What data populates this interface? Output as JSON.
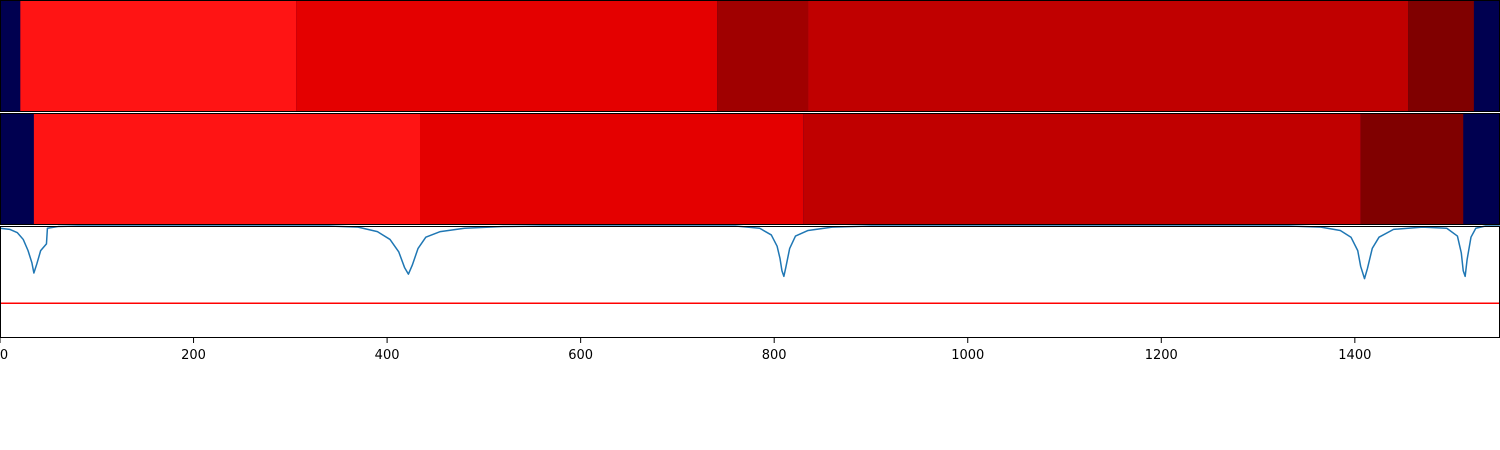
{
  "chart_data": {
    "type": "segmentation-strips-with-line",
    "xlim": [
      0,
      1550
    ],
    "xticks": [
      0,
      200,
      400,
      600,
      800,
      1000,
      1200,
      1400
    ],
    "xtick_labels": [
      "0",
      "200",
      "400",
      "600",
      "800",
      "1000",
      "1200",
      "1400"
    ],
    "background_color": "#000050",
    "strips": [
      {
        "segments": [
          {
            "start": 21,
            "end": 306,
            "color": "#ff1414"
          },
          {
            "start": 306,
            "end": 741,
            "color": "#e40000"
          },
          {
            "start": 741,
            "end": 835,
            "color": "#a00000"
          },
          {
            "start": 835,
            "end": 1455,
            "color": "#c00000"
          },
          {
            "start": 1455,
            "end": 1523,
            "color": "#800000"
          }
        ]
      },
      {
        "segments": [
          {
            "start": 35,
            "end": 434,
            "color": "#ff1414"
          },
          {
            "start": 434,
            "end": 830,
            "color": "#e40000"
          },
          {
            "start": 830,
            "end": 1406,
            "color": "#c00000"
          },
          {
            "start": 1406,
            "end": 1512,
            "color": "#800000"
          }
        ]
      }
    ],
    "line_panel": {
      "ylim": [
        0,
        1
      ],
      "threshold": 0.31,
      "threshold_color": "#ff0000",
      "line_color": "#1f77b4",
      "points": [
        [
          0,
          0.98
        ],
        [
          10,
          0.97
        ],
        [
          18,
          0.94
        ],
        [
          24,
          0.88
        ],
        [
          29,
          0.78
        ],
        [
          33,
          0.67
        ],
        [
          35,
          0.58
        ],
        [
          38,
          0.66
        ],
        [
          42,
          0.78
        ],
        [
          46,
          0.82
        ],
        [
          48,
          0.84
        ],
        [
          49,
          0.98
        ],
        [
          60,
          0.995
        ],
        [
          80,
          1.0
        ],
        [
          340,
          1.0
        ],
        [
          370,
          0.99
        ],
        [
          390,
          0.95
        ],
        [
          403,
          0.88
        ],
        [
          412,
          0.77
        ],
        [
          418,
          0.63
        ],
        [
          422,
          0.57
        ],
        [
          426,
          0.65
        ],
        [
          432,
          0.8
        ],
        [
          440,
          0.9
        ],
        [
          455,
          0.95
        ],
        [
          480,
          0.98
        ],
        [
          520,
          0.995
        ],
        [
          560,
          1.0
        ],
        [
          760,
          1.0
        ],
        [
          785,
          0.98
        ],
        [
          797,
          0.92
        ],
        [
          803,
          0.82
        ],
        [
          806,
          0.71
        ],
        [
          808,
          0.6
        ],
        [
          810,
          0.55
        ],
        [
          812,
          0.63
        ],
        [
          816,
          0.8
        ],
        [
          822,
          0.91
        ],
        [
          835,
          0.96
        ],
        [
          860,
          0.99
        ],
        [
          900,
          1.0
        ],
        [
          1332,
          1.0
        ],
        [
          1365,
          0.99
        ],
        [
          1385,
          0.96
        ],
        [
          1396,
          0.9
        ],
        [
          1403,
          0.78
        ],
        [
          1406,
          0.64
        ],
        [
          1410,
          0.53
        ],
        [
          1413,
          0.62
        ],
        [
          1418,
          0.8
        ],
        [
          1425,
          0.9
        ],
        [
          1440,
          0.97
        ],
        [
          1470,
          0.99
        ],
        [
          1495,
          0.98
        ],
        [
          1506,
          0.91
        ],
        [
          1510,
          0.76
        ],
        [
          1512,
          0.6
        ],
        [
          1514,
          0.55
        ],
        [
          1516,
          0.7
        ],
        [
          1520,
          0.9
        ],
        [
          1525,
          0.98
        ],
        [
          1535,
          1.0
        ],
        [
          1550,
          1.0
        ]
      ]
    }
  }
}
